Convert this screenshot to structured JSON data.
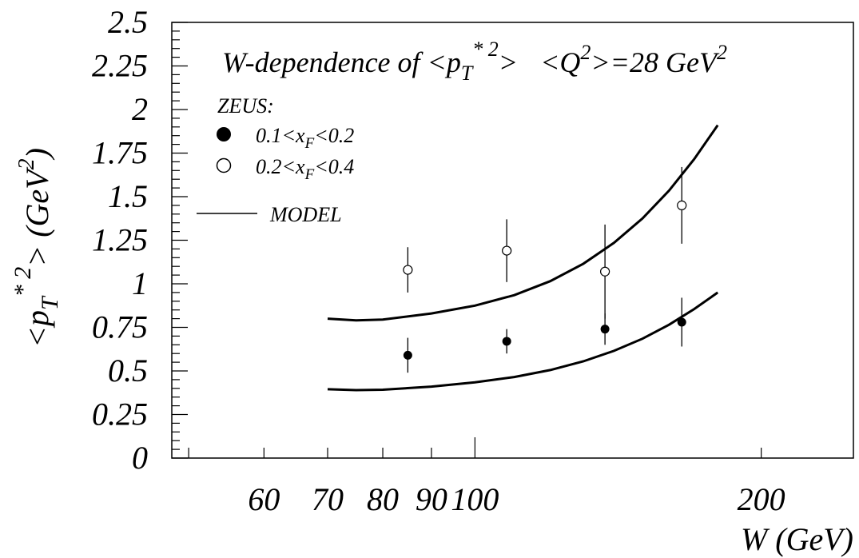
{
  "chart_data": {
    "type": "scatter",
    "title_parts": {
      "t1": "W-dependence of <p",
      "t1_sub": "T",
      "t1_sup": "* 2",
      "t1_end": ">",
      "t2": "<Q",
      "t2_sup": "2",
      "t2_end": ">=28  GeV",
      "t2_sup2": "2"
    },
    "xlabel": "W (GeV)",
    "ylabel_parts": {
      "a": "<p",
      "sub": "T",
      "sup": "* 2",
      "b": "> (GeV",
      "sup2": "2",
      "c": ")"
    },
    "xscale": "log",
    "xlim": [
      48,
      250
    ],
    "ylim": [
      0,
      2.5
    ],
    "x_tick_labels": [
      {
        "value": 60,
        "label": "60"
      },
      {
        "value": 70,
        "label": "70"
      },
      {
        "value": 80,
        "label": "80"
      },
      {
        "value": 90,
        "label": "90"
      },
      {
        "value": 100,
        "label": "100"
      },
      {
        "value": 200,
        "label": "200"
      }
    ],
    "y_tick_labels": [
      "0",
      "0.25",
      "0.5",
      "0.75",
      "1",
      "1.25",
      "1.5",
      "1.75",
      "2",
      "2.25",
      "2.5"
    ],
    "y_tick_values": [
      0,
      0.25,
      0.5,
      0.75,
      1,
      1.25,
      1.5,
      1.75,
      2,
      2.25,
      2.5
    ],
    "legend": {
      "header": "ZEUS:",
      "filled_label_main": "0.1<x",
      "filled_label_sub": "F",
      "filled_label_end": "<0.2",
      "open_label_main": "0.2<x",
      "open_label_sub": "F",
      "open_label_end": "<0.4",
      "model_label": "MODEL"
    },
    "series": [
      {
        "name": "0.1<xF<0.2",
        "marker": "filled-circle",
        "points": [
          {
            "x": 85,
            "y": 0.59,
            "err_low": 0.1,
            "err_high": 0.1
          },
          {
            "x": 108,
            "y": 0.67,
            "err_low": 0.07,
            "err_high": 0.07
          },
          {
            "x": 137,
            "y": 0.74,
            "err_low": 0.09,
            "err_high": 0.09
          },
          {
            "x": 165,
            "y": 0.78,
            "err_low": 0.14,
            "err_high": 0.14
          }
        ]
      },
      {
        "name": "0.2<xF<0.4",
        "marker": "open-circle",
        "points": [
          {
            "x": 85,
            "y": 1.08,
            "err_low": 0.13,
            "err_high": 0.13
          },
          {
            "x": 108,
            "y": 1.19,
            "err_low": 0.18,
            "err_high": 0.18
          },
          {
            "x": 137,
            "y": 1.07,
            "err_low": 0.27,
            "err_high": 0.27
          },
          {
            "x": 165,
            "y": 1.45,
            "err_low": 0.22,
            "err_high": 0.22
          }
        ]
      },
      {
        "name": "MODEL (0.1<xF<0.2)",
        "marker": "line",
        "points": [
          {
            "x": 70,
            "y": 0.395
          },
          {
            "x": 75,
            "y": 0.39
          },
          {
            "x": 80,
            "y": 0.392
          },
          {
            "x": 90,
            "y": 0.41
          },
          {
            "x": 100,
            "y": 0.435
          },
          {
            "x": 110,
            "y": 0.465
          },
          {
            "x": 120,
            "y": 0.505
          },
          {
            "x": 130,
            "y": 0.555
          },
          {
            "x": 140,
            "y": 0.615
          },
          {
            "x": 150,
            "y": 0.685
          },
          {
            "x": 160,
            "y": 0.765
          },
          {
            "x": 170,
            "y": 0.855
          },
          {
            "x": 180,
            "y": 0.95
          }
        ]
      },
      {
        "name": "MODEL (0.2<xF<0.4)",
        "marker": "line",
        "points": [
          {
            "x": 70,
            "y": 0.8
          },
          {
            "x": 75,
            "y": 0.79
          },
          {
            "x": 80,
            "y": 0.795
          },
          {
            "x": 90,
            "y": 0.83
          },
          {
            "x": 100,
            "y": 0.875
          },
          {
            "x": 110,
            "y": 0.935
          },
          {
            "x": 120,
            "y": 1.015
          },
          {
            "x": 130,
            "y": 1.115
          },
          {
            "x": 140,
            "y": 1.235
          },
          {
            "x": 150,
            "y": 1.375
          },
          {
            "x": 160,
            "y": 1.535
          },
          {
            "x": 170,
            "y": 1.715
          },
          {
            "x": 180,
            "y": 1.91
          }
        ]
      }
    ],
    "grid": false,
    "legend_placement": "top-left"
  }
}
